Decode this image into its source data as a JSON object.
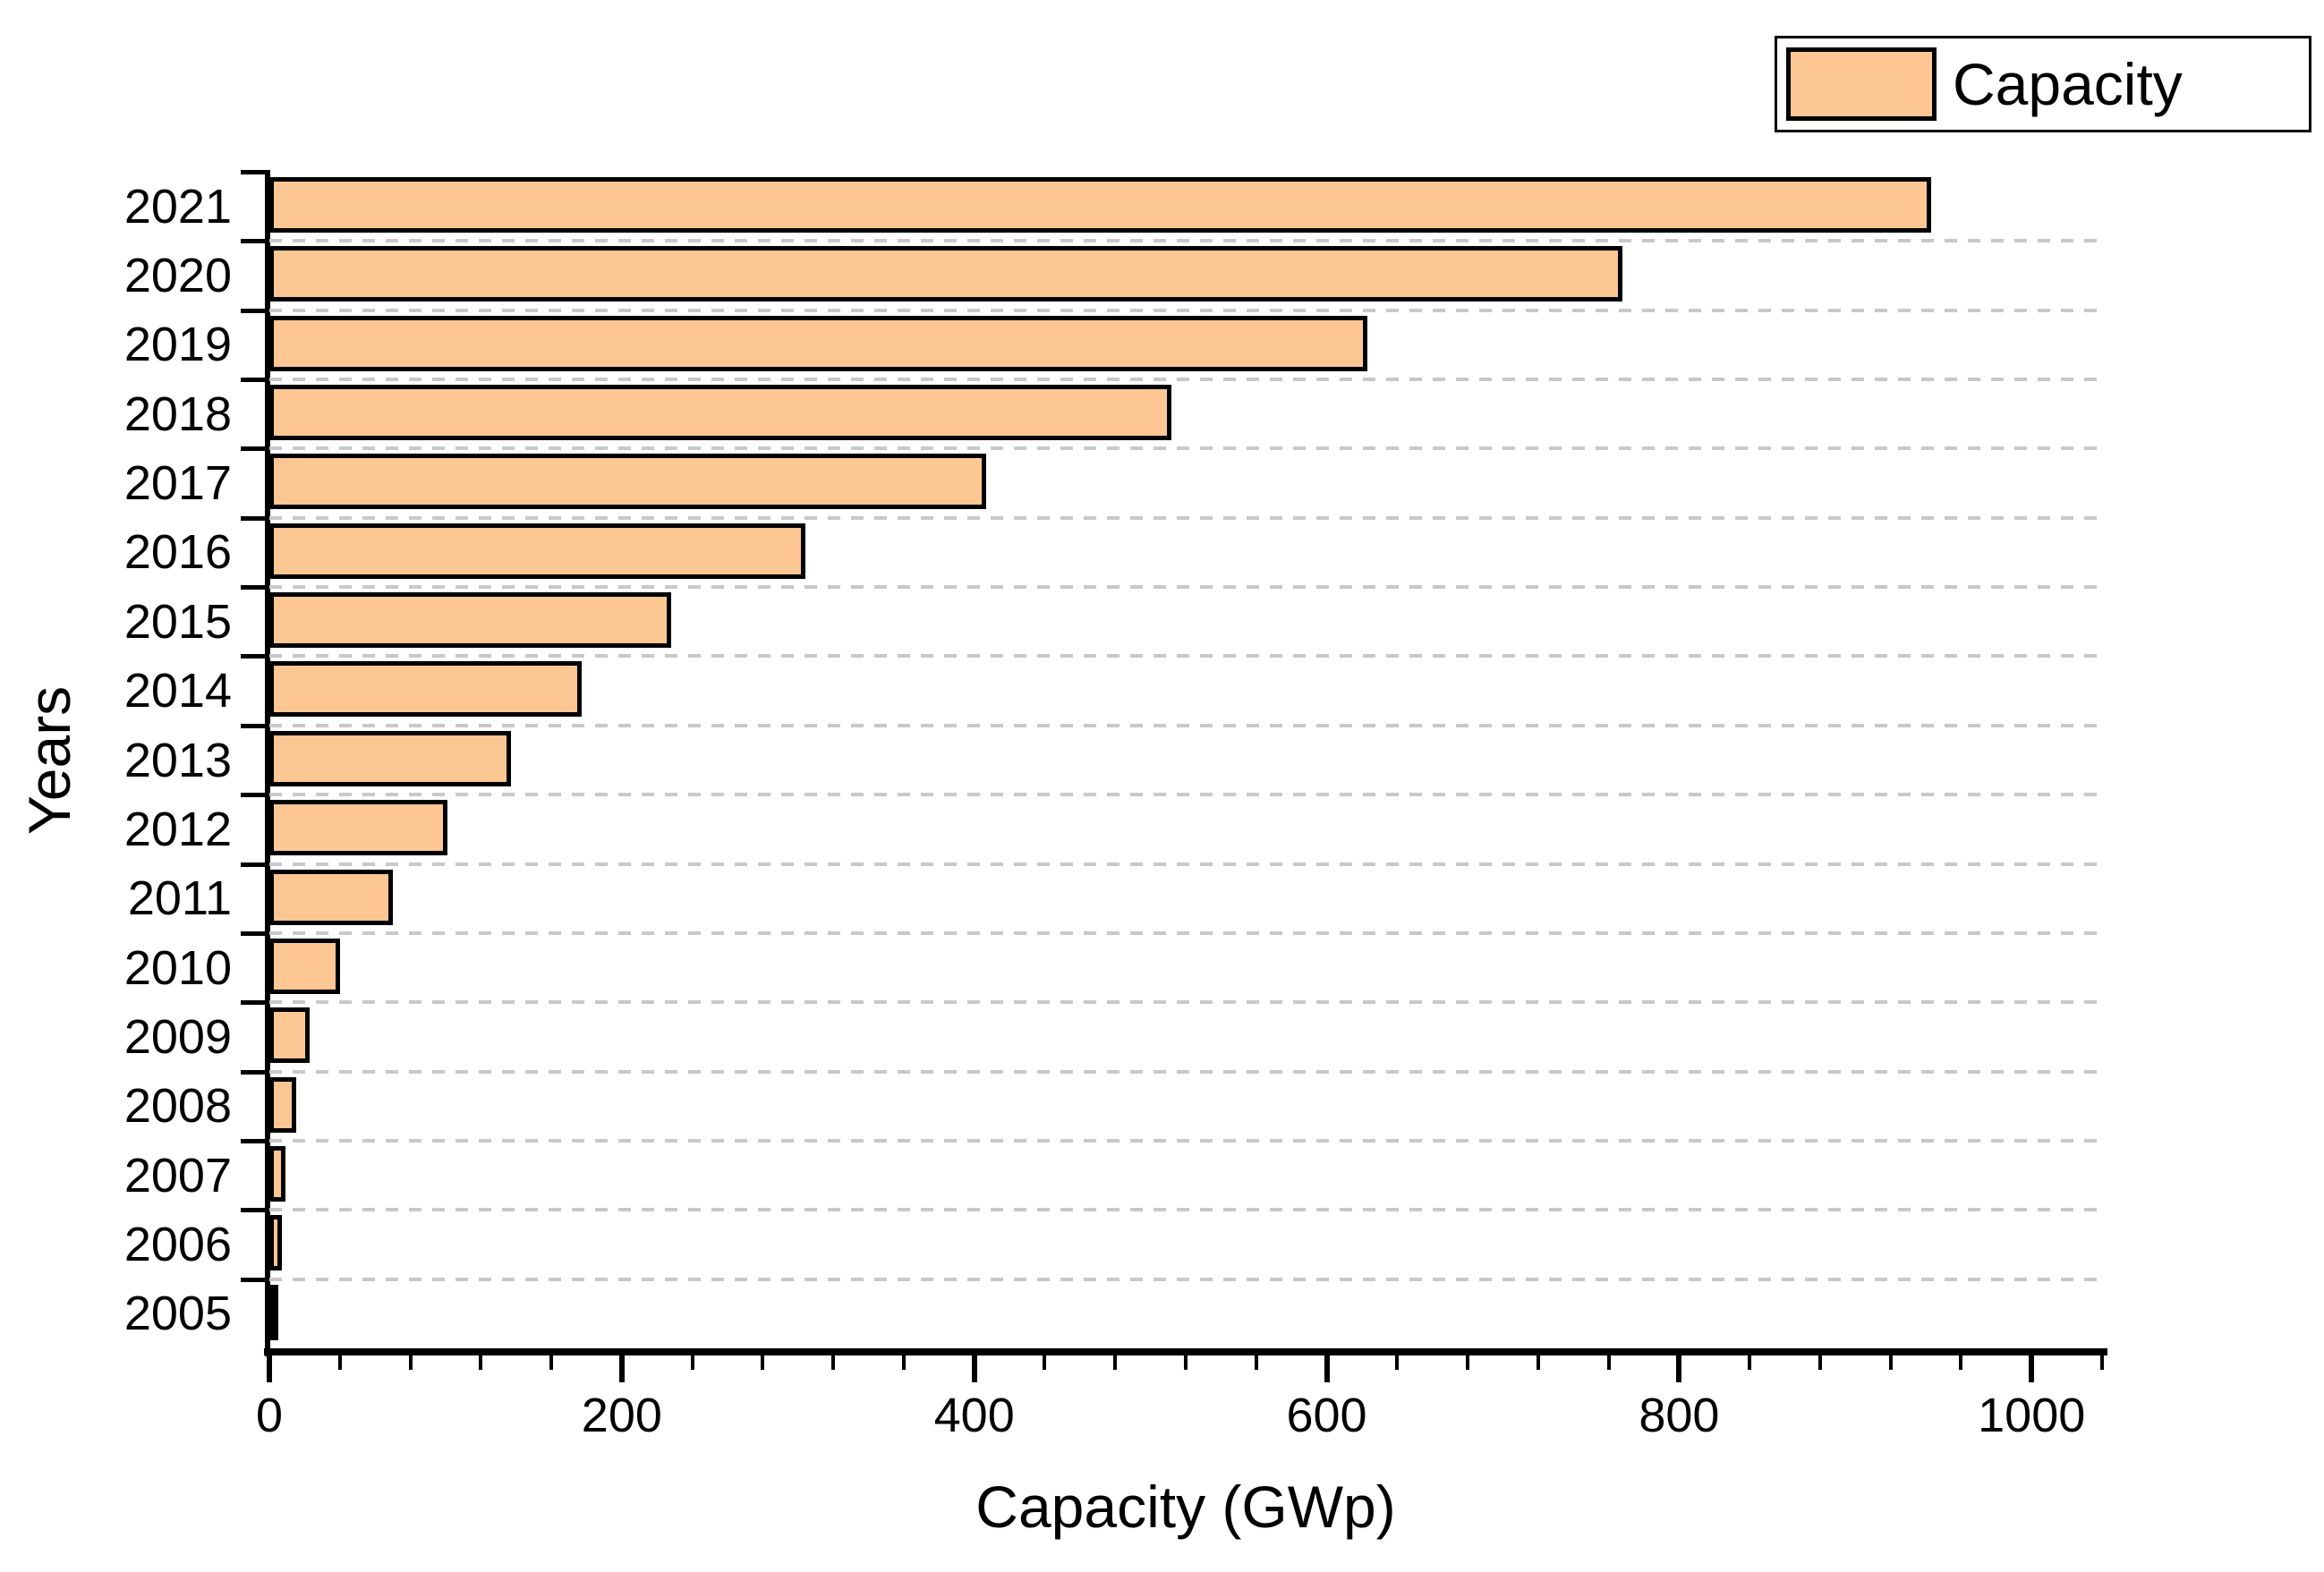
{
  "figure": {
    "background": "#FFFFFF"
  },
  "chart_data": {
    "type": "bar",
    "orientation": "horizontal",
    "title": "",
    "xlabel": "Capacity (GWp)",
    "ylabel": "Years",
    "legend": {
      "label": "Capacity",
      "position": "top-right"
    },
    "categories": [
      "2021",
      "2020",
      "2019",
      "2018",
      "2017",
      "2016",
      "2015",
      "2014",
      "2013",
      "2012",
      "2011",
      "2010",
      "2009",
      "2008",
      "2007",
      "2006",
      "2005"
    ],
    "values": [
      943,
      768,
      623,
      512,
      407,
      304,
      228,
      177,
      137,
      101,
      70,
      40,
      23,
      15,
      9,
      7,
      4.5
    ],
    "xlim": [
      0,
      1040
    ],
    "x_major_ticks": [
      0,
      200,
      400,
      600,
      800,
      1000
    ],
    "x_minor_tick_step": 40,
    "grid": {
      "axis": "y",
      "style": "dashed",
      "color": "#C8C8C8"
    },
    "colors": {
      "bar_fill": "#FDC794",
      "bar_border": "#000000",
      "axis": "#000000",
      "text": "#000000",
      "gridline": "#C8C8C8"
    }
  }
}
